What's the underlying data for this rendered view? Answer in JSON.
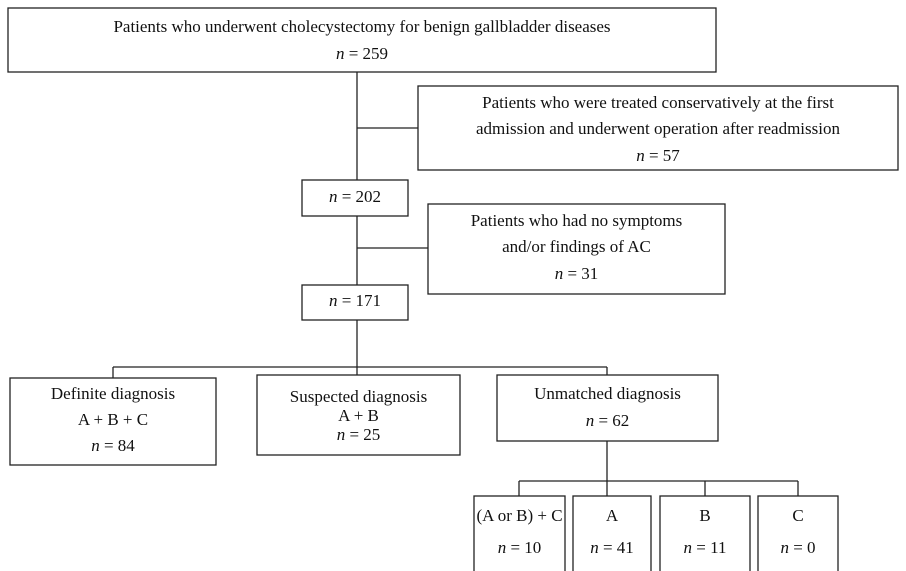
{
  "nodes": [
    {
      "lines": [
        "Patients who underwent cholecystectomy for benign gallbladder diseases",
        "n = 259"
      ]
    },
    {
      "lines": [
        "Patients who were treated conservatively at the first",
        "admission and underwent operation after readmission",
        "n = 57"
      ]
    },
    {
      "lines": [
        "n = 202"
      ]
    },
    {
      "lines": [
        "Patients who had no symptoms",
        "and/or findings of AC",
        "n = 31"
      ]
    },
    {
      "lines": [
        "n = 171"
      ]
    },
    {
      "lines": [
        "Definite diagnosis",
        "A + B + C",
        "n = 84"
      ]
    },
    {
      "lines": [
        "Suspected diagnosis",
        "A + B",
        "n = 25"
      ]
    },
    {
      "lines": [
        "Unmatched diagnosis",
        "n = 62"
      ]
    },
    {
      "lines": [
        "(A or B) + C",
        "n = 10"
      ]
    },
    {
      "lines": [
        "A",
        "n = 41"
      ]
    },
    {
      "lines": [
        "B",
        "n = 11"
      ]
    },
    {
      "lines": [
        "C",
        "n = 0"
      ]
    }
  ]
}
